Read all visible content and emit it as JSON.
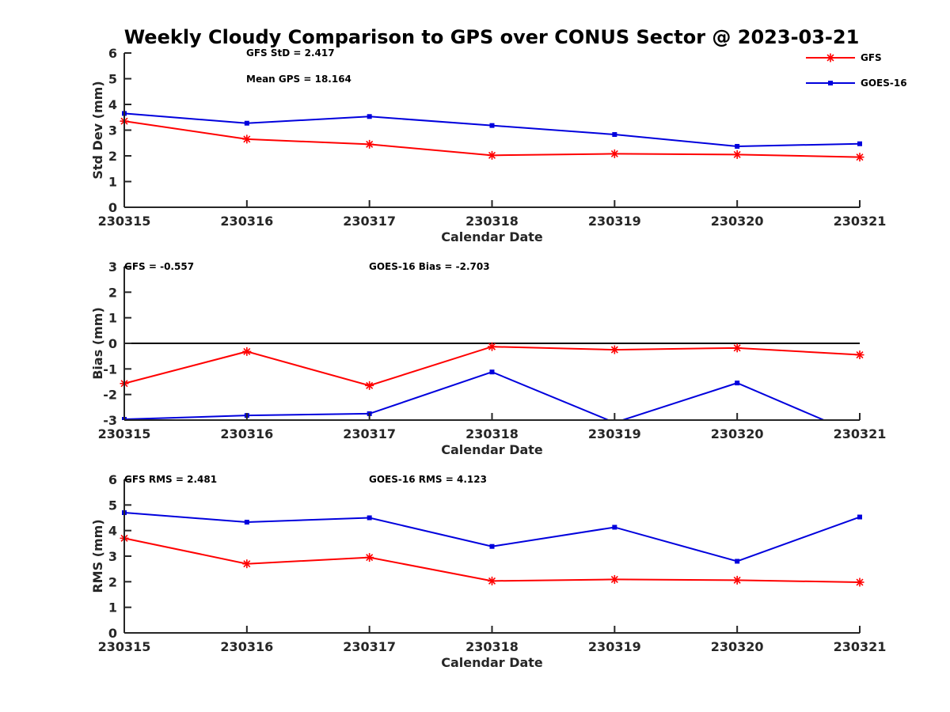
{
  "title": "Weekly Cloudy Comparison to GPS over CONUS Sector @ 2023-03-21",
  "colors": {
    "GFS": "#ff0000",
    "GOES-16": "#0000dd",
    "zero_line": "#000000",
    "axis": "#262626"
  },
  "legend": {
    "placement": "top-right",
    "entries": [
      "GFS",
      "GOES-16"
    ]
  },
  "chart_data": [
    {
      "type": "line",
      "title": "",
      "xlabel": "Calendar Date",
      "ylabel": "Std Dev (mm)",
      "categories": [
        "230315",
        "230316",
        "230317",
        "230318",
        "230319",
        "230320",
        "230321"
      ],
      "ylim": [
        0,
        6
      ],
      "yticks": [
        "0",
        "1",
        "2",
        "3",
        "4",
        "5",
        "6"
      ],
      "annotations": [
        "GFS StD = 2.417",
        "Mean GPS = 18.164"
      ],
      "series": [
        {
          "name": "GFS",
          "marker": "asterisk",
          "values": [
            3.35,
            2.65,
            2.45,
            2.02,
            2.08,
            2.05,
            1.95
          ]
        },
        {
          "name": "GOES-16",
          "marker": "square",
          "values": [
            3.65,
            3.27,
            3.53,
            3.18,
            2.83,
            2.37,
            2.47
          ]
        }
      ],
      "zero_line": false,
      "grid": false
    },
    {
      "type": "line",
      "title": "",
      "xlabel": "Calendar Date",
      "ylabel": "Bias (mm)",
      "categories": [
        "230315",
        "230316",
        "230317",
        "230318",
        "230319",
        "230320",
        "230321"
      ],
      "ylim": [
        -3,
        3
      ],
      "yticks": [
        "-3",
        "-2",
        "-1",
        "0",
        "1",
        "2",
        "3"
      ],
      "annotations": [
        "GFS = -0.557",
        "GOES-16 Bias  = -2.703"
      ],
      "series": [
        {
          "name": "GFS",
          "marker": "asterisk",
          "values": [
            -1.57,
            -0.32,
            -1.65,
            -0.13,
            -0.25,
            -0.18,
            -0.45
          ]
        },
        {
          "name": "GOES-16",
          "marker": "square",
          "values": [
            -2.97,
            -2.82,
            -2.75,
            -1.12,
            -3.1,
            -1.55,
            -3.6
          ]
        }
      ],
      "zero_line": true,
      "grid": false
    },
    {
      "type": "line",
      "title": "",
      "xlabel": "Calendar Date",
      "ylabel": "RMS (mm)",
      "categories": [
        "230315",
        "230316",
        "230317",
        "230318",
        "230319",
        "230320",
        "230321"
      ],
      "ylim": [
        0,
        6
      ],
      "yticks": [
        "0",
        "1",
        "2",
        "3",
        "4",
        "5",
        "6"
      ],
      "annotations": [
        "GFS RMS = 2.481",
        "GOES-16 RMS = 4.123"
      ],
      "series": [
        {
          "name": "GFS",
          "marker": "asterisk",
          "values": [
            3.7,
            2.7,
            2.95,
            2.03,
            2.09,
            2.06,
            1.98
          ]
        },
        {
          "name": "GOES-16",
          "marker": "square",
          "values": [
            4.7,
            4.33,
            4.5,
            3.38,
            4.13,
            2.8,
            4.53
          ]
        }
      ],
      "zero_line": false,
      "grid": false
    }
  ]
}
